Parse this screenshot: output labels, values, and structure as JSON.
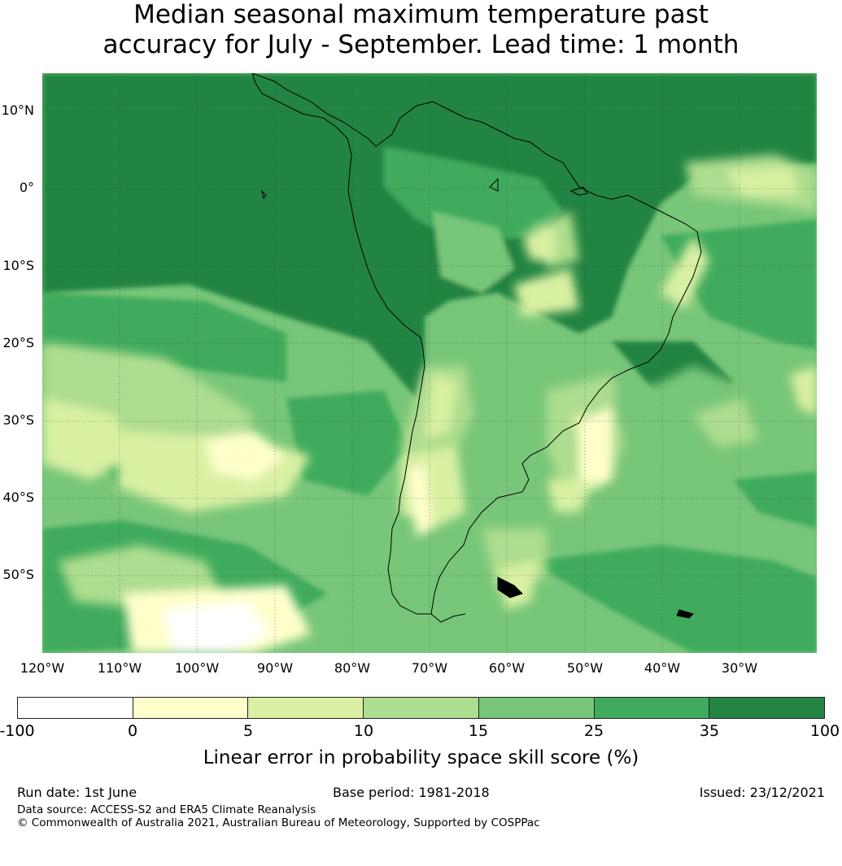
{
  "title_line1": "Median seasonal maximum temperature past",
  "title_line2": "accuracy for July - September. Lead time: 1 month",
  "map": {
    "lon_range": [
      -125,
      -25
    ],
    "lat_range": [
      -60,
      15
    ],
    "lat_labels": [
      "10°N",
      "0°",
      "10°S",
      "20°S",
      "30°S",
      "40°S",
      "50°S"
    ],
    "lon_labels": [
      "120°W",
      "110°W",
      "100°W",
      "90°W",
      "80°W",
      "70°W",
      "60°W",
      "50°W",
      "40°W",
      "30°W"
    ]
  },
  "colorbar": {
    "ticks": [
      "-100",
      "0",
      "5",
      "10",
      "15",
      "25",
      "35",
      "100"
    ],
    "colors": [
      "#ffffff",
      "#ffffcc",
      "#d9f0a3",
      "#addd8e",
      "#78c679",
      "#41ab5d",
      "#238443"
    ],
    "label": "Linear error in probability space skill score (%)"
  },
  "footer": {
    "run_date": "Run date: 1st June",
    "base_period": "Base period: 1981-2018",
    "issued": "Issued: 23/12/2021",
    "data_source": "Data source: ACCESS-S2 and ERA5 Climate Reanalysis",
    "copyright": "© Commonwealth of Australia 2021, Australian Bureau of Meteorology, Supported by COSPPac"
  }
}
